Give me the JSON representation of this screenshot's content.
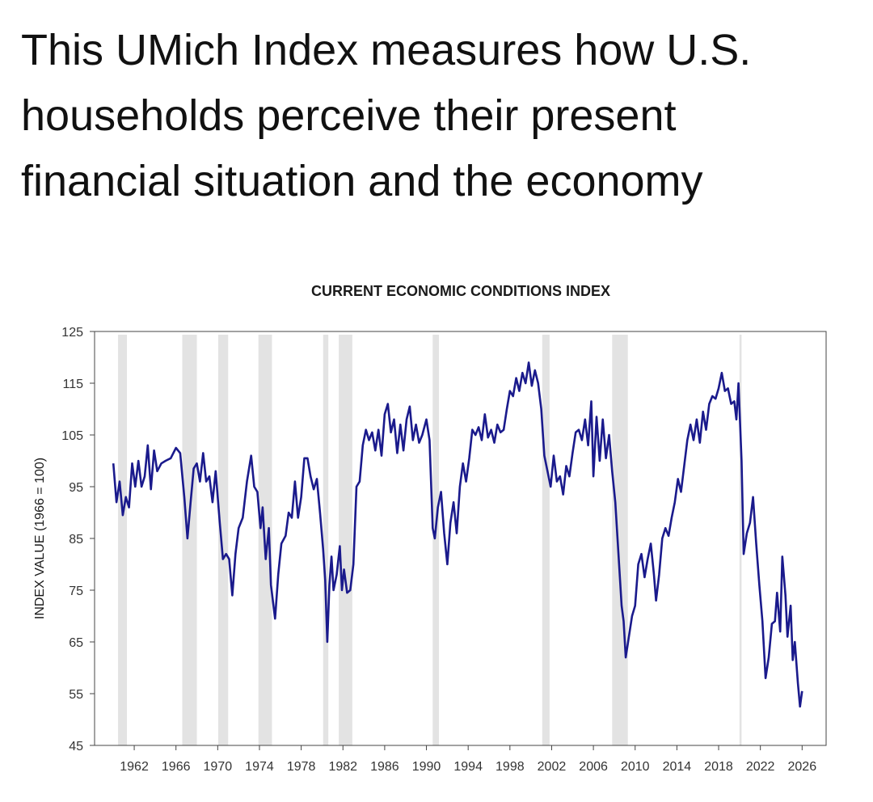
{
  "heading_lines": [
    "This UMich Index measures how U.S.",
    "households perceive their present",
    "financial situation and the economy"
  ],
  "chart_data": {
    "type": "line",
    "title": "CURRENT ECONOMIC CONDITIONS INDEX",
    "y_label": "INDEX VALUE (1966 = 100)",
    "xlim": [
      1958.2,
      2028.3
    ],
    "xticks": [
      1962,
      1966,
      1970,
      1974,
      1978,
      1982,
      1986,
      1990,
      1994,
      1998,
      2002,
      2006,
      2010,
      2014,
      2018,
      2022,
      2026
    ],
    "ylim": [
      45,
      125
    ],
    "yticks": [
      45,
      55,
      65,
      75,
      85,
      95,
      105,
      115,
      125
    ],
    "grid": false,
    "shaded_regions": [
      [
        1960.45,
        1961.3
      ],
      [
        1966.6,
        1968.0
      ],
      [
        1970.05,
        1971.0
      ],
      [
        1973.9,
        1975.2
      ],
      [
        1980.1,
        1980.6
      ],
      [
        1981.6,
        1982.9
      ],
      [
        1990.6,
        1991.2
      ],
      [
        2001.1,
        2001.8
      ],
      [
        2007.8,
        2009.3
      ],
      [
        2020.0,
        2020.2
      ]
    ],
    "shade_color": "#e3e3e3",
    "x": [
      1960.0,
      1960.3,
      1960.6,
      1960.9,
      1961.2,
      1961.5,
      1961.8,
      1962.1,
      1962.4,
      1962.7,
      1963.0,
      1963.3,
      1963.6,
      1963.9,
      1964.2,
      1964.6,
      1965.0,
      1965.5,
      1966.0,
      1966.4,
      1966.8,
      1967.1,
      1967.4,
      1967.7,
      1968.0,
      1968.3,
      1968.6,
      1968.9,
      1969.2,
      1969.5,
      1969.8,
      1970.2,
      1970.5,
      1970.8,
      1971.1,
      1971.4,
      1971.7,
      1972.0,
      1972.4,
      1972.8,
      1973.2,
      1973.5,
      1973.8,
      1974.1,
      1974.3,
      1974.6,
      1974.9,
      1975.1,
      1975.5,
      1975.8,
      1976.1,
      1976.5,
      1976.8,
      1977.1,
      1977.4,
      1977.7,
      1978.0,
      1978.3,
      1978.6,
      1978.9,
      1979.2,
      1979.5,
      1979.8,
      1980.1,
      1980.3,
      1980.5,
      1980.7,
      1980.9,
      1981.1,
      1981.4,
      1981.7,
      1981.9,
      1982.1,
      1982.4,
      1982.7,
      1983.0,
      1983.3,
      1983.6,
      1983.9,
      1984.2,
      1984.5,
      1984.8,
      1985.1,
      1985.4,
      1985.7,
      1986.0,
      1986.3,
      1986.6,
      1986.9,
      1987.2,
      1987.5,
      1987.8,
      1988.1,
      1988.4,
      1988.7,
      1989.0,
      1989.3,
      1989.6,
      1990.0,
      1990.3,
      1990.6,
      1990.8,
      1991.1,
      1991.4,
      1991.7,
      1992.0,
      1992.3,
      1992.6,
      1992.9,
      1993.2,
      1993.5,
      1993.8,
      1994.1,
      1994.4,
      1994.7,
      1995.0,
      1995.3,
      1995.6,
      1995.9,
      1996.2,
      1996.5,
      1996.8,
      1997.1,
      1997.4,
      1997.7,
      1998.0,
      1998.3,
      1998.6,
      1998.9,
      1999.2,
      1999.5,
      1999.8,
      2000.1,
      2000.4,
      2000.7,
      2001.0,
      2001.3,
      2001.6,
      2001.9,
      2002.2,
      2002.5,
      2002.8,
      2003.1,
      2003.4,
      2003.7,
      2004.0,
      2004.3,
      2004.6,
      2004.9,
      2005.2,
      2005.5,
      2005.8,
      2006.0,
      2006.3,
      2006.6,
      2006.9,
      2007.2,
      2007.5,
      2007.8,
      2008.1,
      2008.4,
      2008.7,
      2008.9,
      2009.1,
      2009.4,
      2009.7,
      2010.0,
      2010.3,
      2010.6,
      2010.9,
      2011.2,
      2011.5,
      2011.8,
      2012.0,
      2012.3,
      2012.6,
      2012.9,
      2013.2,
      2013.5,
      2013.8,
      2014.1,
      2014.4,
      2014.7,
      2015.0,
      2015.3,
      2015.6,
      2015.9,
      2016.2,
      2016.5,
      2016.8,
      2017.1,
      2017.4,
      2017.7,
      2018.0,
      2018.3,
      2018.6,
      2018.9,
      2019.2,
      2019.5,
      2019.7,
      2019.9,
      2020.2,
      2020.4,
      2020.7,
      2021.0,
      2021.3,
      2021.6,
      2021.9,
      2022.2,
      2022.5,
      2022.8,
      2023.1,
      2023.4,
      2023.6,
      2023.9,
      2024.1,
      2024.4,
      2024.6,
      2024.9,
      2025.1,
      2025.3,
      2025.6,
      2025.8,
      2026.0
    ],
    "series": [
      {
        "color": "#1a1a8c",
        "values": [
          99.5,
          92,
          96,
          89.5,
          93,
          91,
          99.5,
          95,
          100,
          95,
          97,
          103,
          94.5,
          102,
          98,
          99.5,
          100,
          100.5,
          102.5,
          101.5,
          93,
          85,
          92,
          98.5,
          99.5,
          96,
          101.5,
          96,
          97,
          92,
          98,
          88,
          81,
          82,
          81,
          74,
          82,
          87,
          89,
          96,
          101,
          95,
          94,
          87,
          91,
          81,
          87,
          76,
          69.5,
          78,
          84,
          85.5,
          90,
          89,
          96,
          89,
          93,
          100.5,
          100.5,
          97,
          94.5,
          96.5,
          90,
          83,
          77,
          65,
          76,
          81.5,
          75,
          78,
          83.5,
          75,
          79,
          74.5,
          75,
          80,
          95,
          96,
          103,
          106,
          104,
          105.5,
          102,
          106,
          101,
          109,
          111,
          105.5,
          108,
          101.5,
          107,
          102,
          108,
          110.5,
          104,
          107,
          103.5,
          105,
          108,
          104,
          87,
          85,
          91,
          94,
          86,
          80,
          88,
          92,
          86,
          95,
          99.5,
          96,
          100.5,
          106,
          105,
          106.5,
          104,
          109,
          104.5,
          106,
          103.5,
          107,
          105.5,
          106,
          110,
          113.5,
          112.5,
          116,
          113.5,
          117,
          115,
          119,
          114.5,
          117.5,
          115,
          110,
          101,
          98,
          95,
          101,
          96,
          97,
          93.5,
          99,
          97,
          101.5,
          105.5,
          106,
          104,
          108,
          103,
          111.5,
          97,
          108.5,
          100,
          108,
          100.5,
          105,
          98,
          92,
          82,
          72,
          69,
          62,
          66,
          70,
          72,
          80,
          82,
          77.5,
          81,
          84,
          78,
          73,
          78,
          85,
          87,
          85.5,
          89,
          92,
          96.5,
          94,
          99,
          104,
          107,
          104,
          108,
          103.5,
          109.5,
          106,
          111,
          112.5,
          112,
          114,
          117,
          113.5,
          114,
          111,
          111.5,
          108,
          115,
          100,
          82,
          86,
          88,
          93,
          84,
          76,
          69,
          58,
          62,
          68.5,
          69,
          74.5,
          67,
          81.5,
          74,
          66,
          72,
          61.5,
          65,
          57,
          52.5,
          55.5
        ]
      }
    ]
  }
}
